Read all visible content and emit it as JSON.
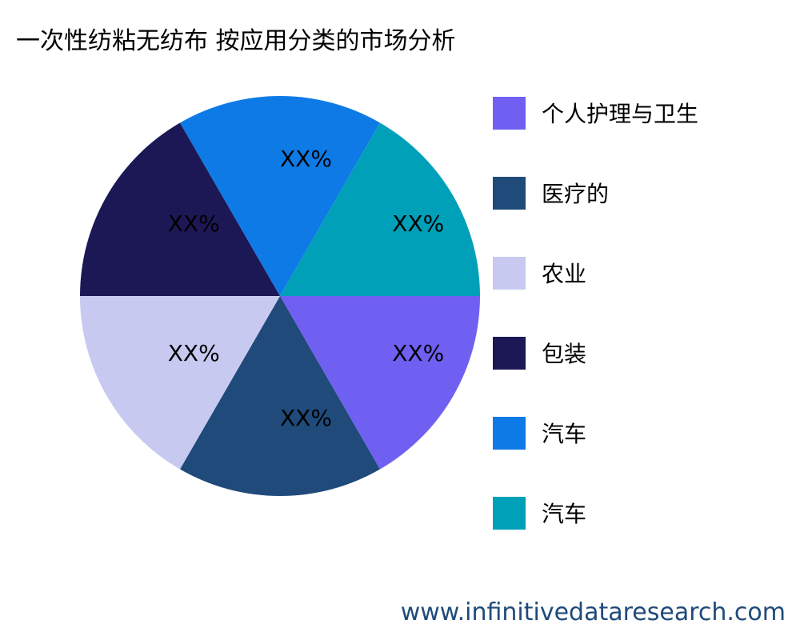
{
  "chart_data": {
    "type": "pie",
    "title": "一次性纺粘无纺布 按应用分类的市场分析",
    "slices": [
      {
        "label": "个人护理与卫生",
        "value": 1,
        "data_label": "XX%",
        "color": "#6f60f2"
      },
      {
        "label": "医疗的",
        "value": 1,
        "data_label": "XX%",
        "color": "#1f4a7a"
      },
      {
        "label": "农业",
        "value": 1,
        "data_label": "XX%",
        "color": "#c8c9f0"
      },
      {
        "label": "包装",
        "value": 1,
        "data_label": "XX%",
        "color": "#1c1755"
      },
      {
        "label": "汽车",
        "value": 1,
        "data_label": "XX%",
        "color": "#0e7ae6"
      },
      {
        "label": "汽车",
        "value": 1,
        "data_label": "XX%",
        "color": "#00a0b8"
      }
    ],
    "start_angle": "3 o'clock, clockwise",
    "legend_placement": "right"
  },
  "footer": {
    "website": "www.infinitivedataresearch.com"
  }
}
